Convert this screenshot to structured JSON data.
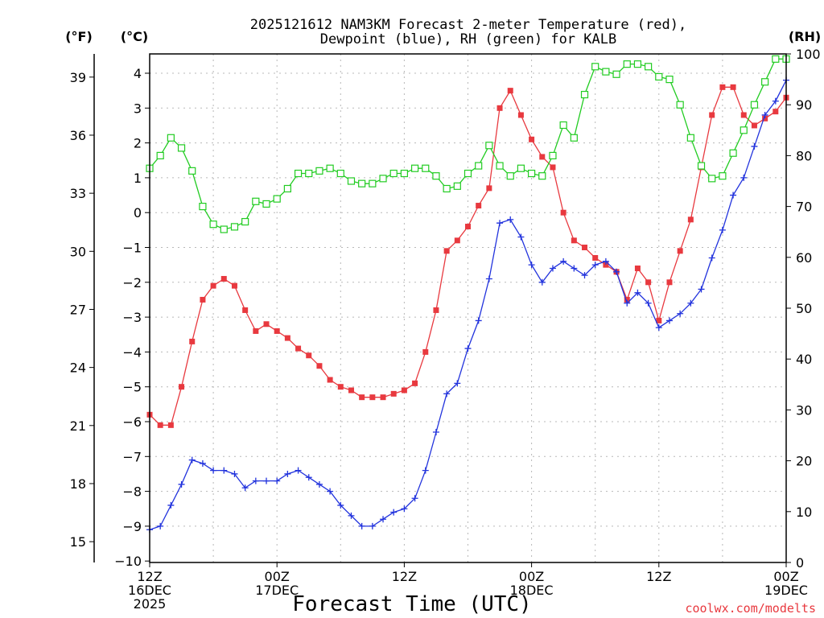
{
  "chart_data": {
    "type": "line",
    "title": "2025121612 NAM3KM Forecast 2-meter Temperature (red),",
    "subtitle": "Dewpoint (blue), RH (green) for KALB",
    "xlabel": "Forecast Time (UTC)",
    "credit": "coolwx.com/modelts",
    "units": {
      "fahrenheit": "(°F)",
      "celsius": "(°C)",
      "rh": "(RH)"
    },
    "x_ticks": [
      {
        "hour": 0,
        "lines": [
          "12Z",
          "16DEC",
          "2025"
        ]
      },
      {
        "hour": 12,
        "lines": [
          "00Z",
          "17DEC"
        ]
      },
      {
        "hour": 24,
        "lines": [
          "12Z"
        ]
      },
      {
        "hour": 36,
        "lines": [
          "00Z",
          "18DEC"
        ]
      },
      {
        "hour": 48,
        "lines": [
          "12Z"
        ]
      },
      {
        "hour": 60,
        "lines": [
          "00Z",
          "19DEC"
        ]
      }
    ],
    "xlim": [
      0,
      60
    ],
    "y_celsius": {
      "range": [
        -10,
        4.5
      ],
      "ticks": [
        -10,
        -9,
        -8,
        -7,
        -6,
        -5,
        -4,
        -3,
        -2,
        -1,
        0,
        1,
        2,
        3,
        4
      ]
    },
    "y_fahrenheit": {
      "ticks": [
        15,
        18,
        21,
        24,
        27,
        30,
        33,
        36,
        39
      ]
    },
    "y_rh": {
      "range": [
        0,
        100
      ],
      "ticks": [
        0,
        10,
        20,
        30,
        40,
        50,
        60,
        70,
        80,
        90,
        100
      ]
    },
    "series": [
      {
        "name": "Temperature",
        "axis": "celsius",
        "color": "#e8393f",
        "marker": "filled-square",
        "values": [
          -5.8,
          -6.1,
          -6.1,
          -5.0,
          -3.7,
          -2.5,
          -2.1,
          -1.9,
          -2.1,
          -2.8,
          -3.4,
          -3.2,
          -3.4,
          -3.6,
          -3.9,
          -4.1,
          -4.4,
          -4.8,
          -5.0,
          -5.1,
          -5.3,
          -5.3,
          -5.3,
          -5.2,
          -5.1,
          -4.9,
          -4.0,
          -2.8,
          -1.1,
          -0.8,
          -0.4,
          0.2,
          0.7,
          3.0,
          3.5,
          2.8,
          2.1,
          1.6,
          1.3,
          0.0,
          -0.8,
          -1.0,
          -1.3,
          -1.5,
          -1.7,
          -2.5,
          -1.6,
          -2.0,
          -3.1,
          -2.0,
          -1.1,
          -0.2,
          1.3,
          2.8,
          3.6,
          3.6,
          2.8,
          2.5,
          2.7,
          2.9,
          3.3
        ]
      },
      {
        "name": "Dewpoint",
        "axis": "celsius",
        "color": "#2233dd",
        "marker": "plus",
        "values": [
          -9.1,
          -9.0,
          -8.4,
          -7.8,
          -7.1,
          -7.2,
          -7.4,
          -7.4,
          -7.5,
          -7.9,
          -7.7,
          -7.7,
          -7.7,
          -7.5,
          -7.4,
          -7.6,
          -7.8,
          -8.0,
          -8.4,
          -8.7,
          -9.0,
          -9.0,
          -8.8,
          -8.6,
          -8.5,
          -8.2,
          -7.4,
          -6.3,
          -5.2,
          -4.9,
          -3.9,
          -3.1,
          -1.9,
          -0.3,
          -0.2,
          -0.7,
          -1.5,
          -2.0,
          -1.6,
          -1.4,
          -1.6,
          -1.8,
          -1.5,
          -1.4,
          -1.7,
          -2.6,
          -2.3,
          -2.6,
          -3.3,
          -3.1,
          -2.9,
          -2.6,
          -2.2,
          -1.3,
          -0.5,
          0.5,
          1.0,
          1.9,
          2.8,
          3.2,
          3.8
        ]
      },
      {
        "name": "RH",
        "axis": "rh",
        "color": "#22cc22",
        "marker": "open-square",
        "values": [
          77.5,
          80,
          83.5,
          81.5,
          77,
          70,
          66.5,
          65.5,
          66,
          67,
          71,
          70.5,
          71.5,
          73.5,
          76.5,
          76.5,
          77,
          77.5,
          76.5,
          75,
          74.5,
          74.5,
          75.5,
          76.5,
          76.5,
          77.5,
          77.5,
          76,
          73.5,
          74,
          76.5,
          78,
          82,
          78,
          76,
          77.5,
          76.5,
          76,
          80,
          86,
          83.5,
          92,
          97.5,
          96.5,
          96,
          98,
          98,
          97.5,
          95.5,
          95,
          90,
          83.5,
          78,
          75.5,
          76,
          80.5,
          85,
          90,
          94.5,
          99,
          99
        ]
      }
    ]
  }
}
